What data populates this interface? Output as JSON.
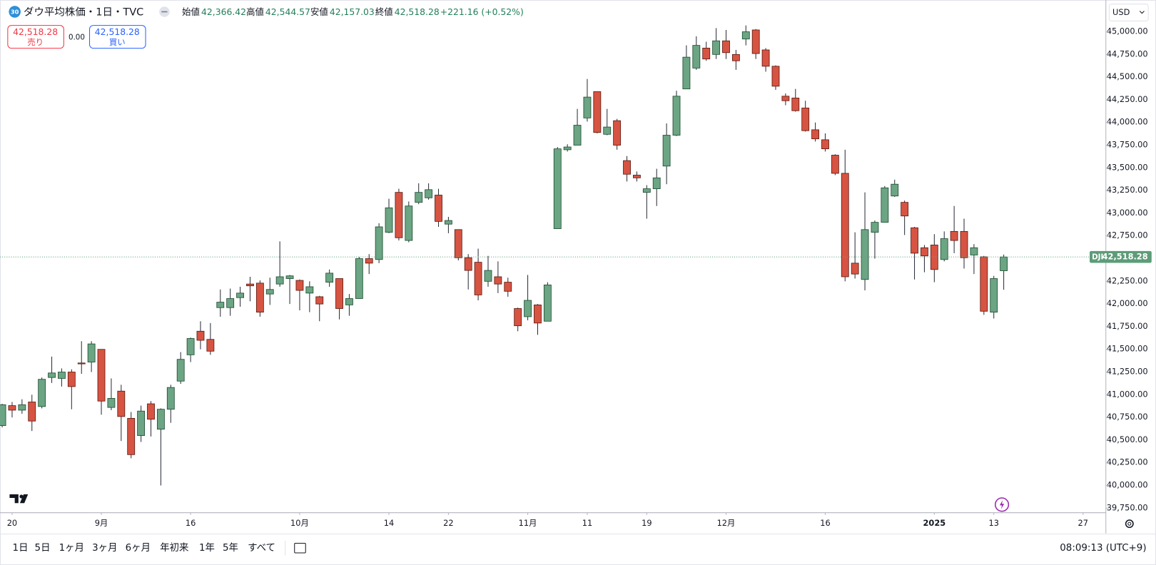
{
  "header": {
    "badge": "30",
    "symbol": "ダウ平均株価・1日・TVC",
    "legend": [
      {
        "label": "始値",
        "value": "42,366.42"
      },
      {
        "label": "高値",
        "value": "42,544.57"
      },
      {
        "label": "安値",
        "value": "42,157.03"
      },
      {
        "label": "終値",
        "value": "42,518.28"
      }
    ],
    "change": "+221.16 (+0.52%)"
  },
  "trade": {
    "sell_price": "42,518.28",
    "sell_label": "売り",
    "spread": "0.00",
    "buy_price": "42,518.28",
    "buy_label": "買い"
  },
  "currency": "USD",
  "chart_data": {
    "type": "candlestick",
    "grid": false,
    "series": [
      {
        "name": "DJI",
        "up_color": "#6ba583",
        "down_color": "#d75442",
        "last_value_label": "42,518.28",
        "open": [
          40660,
          40880,
          40830,
          40920,
          40870,
          41190,
          41180,
          41250,
          41350,
          41360,
          41500,
          40860,
          41040,
          40740,
          40550,
          40900,
          40620,
          40840,
          41150,
          41440,
          41700,
          41610,
          41960,
          41960,
          42070,
          42220,
          42230,
          42110,
          42220,
          42280,
          42260,
          42120,
          42080,
          42240,
          42280,
          41990,
          42060,
          42500,
          42490,
          42790,
          43230,
          42700,
          43120,
          43170,
          43200,
          42880,
          42820,
          42510,
          42460,
          42250,
          42300,
          42240,
          41950,
          41860,
          41990,
          41810,
          42830,
          43700,
          43750,
          44050,
          44340,
          43870,
          44020,
          43580,
          43420,
          43230,
          43270,
          43520,
          43860,
          44370,
          44600,
          44820,
          44750,
          44900,
          44750,
          44920,
          45020,
          44800,
          44620,
          44290,
          44270,
          44160,
          43920,
          43810,
          43640,
          43440,
          42450,
          42270,
          42790,
          42900,
          43190,
          43120,
          42840,
          42620,
          42650,
          42490,
          42800,
          42800,
          42540,
          42520,
          41910,
          42366.42
        ],
        "high": [
          40900,
          40920,
          40950,
          41000,
          41190,
          41420,
          41290,
          41280,
          41590,
          41590,
          41500,
          41180,
          41110,
          40810,
          40880,
          40930,
          40850,
          41110,
          41470,
          41630,
          41810,
          41790,
          42160,
          42170,
          42190,
          42300,
          42260,
          42290,
          42690,
          42320,
          42270,
          42250,
          42090,
          42380,
          42280,
          42110,
          42520,
          42550,
          42890,
          43160,
          43270,
          43130,
          43330,
          43330,
          43270,
          42960,
          42820,
          42550,
          42610,
          42530,
          42470,
          42290,
          41960,
          42320,
          42000,
          42240,
          43730,
          43760,
          44150,
          44480,
          44340,
          44150,
          44040,
          43630,
          43460,
          43310,
          43490,
          43990,
          44350,
          44850,
          44950,
          44890,
          45040,
          45020,
          44800,
          45070,
          45030,
          44820,
          44630,
          44320,
          44370,
          44240,
          44000,
          43880,
          43650,
          43700,
          42790,
          43230,
          42920,
          43300,
          43370,
          43140,
          42850,
          42650,
          42770,
          42800,
          43080,
          42940,
          42660,
          42530,
          42310,
          42544.57
        ],
        "low": [
          40640,
          40750,
          40790,
          40600,
          40850,
          41130,
          41090,
          40840,
          41230,
          41250,
          40780,
          40830,
          40490,
          40300,
          40480,
          40540,
          40000,
          40690,
          41120,
          41360,
          41500,
          41440,
          41860,
          41870,
          41970,
          42030,
          41860,
          41990,
          42190,
          42000,
          41930,
          41910,
          41810,
          42190,
          41830,
          41870,
          42060,
          42330,
          42450,
          42780,
          42700,
          42680,
          43100,
          43150,
          42850,
          42780,
          42480,
          42160,
          42040,
          42190,
          42120,
          42080,
          41700,
          41820,
          41660,
          41810,
          42830,
          43680,
          43750,
          44010,
          43880,
          43860,
          43700,
          43350,
          43350,
          42940,
          43080,
          43320,
          43850,
          44370,
          44580,
          44680,
          44700,
          44700,
          44580,
          44850,
          44700,
          44560,
          44360,
          44190,
          44120,
          43900,
          43790,
          43680,
          43420,
          42250,
          42280,
          42150,
          42500,
          42900,
          43180,
          42760,
          42270,
          42350,
          42240,
          42470,
          42560,
          42390,
          42330,
          41880,
          41840,
          42157.03
        ],
        "close": [
          40890,
          40830,
          40890,
          40710,
          41170,
          41240,
          41250,
          41090,
          41340,
          41560,
          40930,
          40960,
          40760,
          40340,
          40820,
          40730,
          40840,
          41080,
          41390,
          41620,
          41600,
          41480,
          42020,
          42060,
          42120,
          42200,
          41910,
          42160,
          42300,
          42310,
          42150,
          42190,
          42000,
          42340,
          41950,
          42060,
          42500,
          42450,
          42850,
          43060,
          42730,
          43080,
          43230,
          43260,
          42910,
          42920,
          42510,
          42370,
          42100,
          42370,
          42220,
          42140,
          41760,
          42040,
          41790,
          42210,
          43710,
          43730,
          43970,
          44280,
          43890,
          43950,
          43750,
          43430,
          43390,
          43270,
          43390,
          43860,
          44290,
          44720,
          44850,
          44700,
          44900,
          44770,
          44680,
          45000,
          44760,
          44620,
          44400,
          44240,
          44130,
          43910,
          43820,
          43710,
          43440,
          42300,
          42330,
          42820,
          42900,
          43280,
          43320,
          42970,
          42560,
          42530,
          42380,
          42720,
          42700,
          42510,
          42620,
          41920,
          42280,
          42518.28
        ]
      }
    ],
    "ylim": [
      39700,
      45350
    ],
    "yticks": [
      {
        "value": 39750,
        "label": "39,750.00"
      },
      {
        "value": 40000,
        "label": "40,000.00"
      },
      {
        "value": 40250,
        "label": "40,250.00"
      },
      {
        "value": 40500,
        "label": "40,500.00"
      },
      {
        "value": 40750,
        "label": "40,750.00"
      },
      {
        "value": 41000,
        "label": "41,000.00"
      },
      {
        "value": 41250,
        "label": "41,250.00"
      },
      {
        "value": 41500,
        "label": "41,500.00"
      },
      {
        "value": 41750,
        "label": "41,750.00"
      },
      {
        "value": 42000,
        "label": "42,000.00"
      },
      {
        "value": 42250,
        "label": "42,250.00"
      },
      {
        "value": 42500,
        "label": "42,500.00"
      },
      {
        "value": 42750,
        "label": "42,750.00"
      },
      {
        "value": 43000,
        "label": "43,000.00"
      },
      {
        "value": 43250,
        "label": "43,250.00"
      },
      {
        "value": 43500,
        "label": "43,500.00"
      },
      {
        "value": 43750,
        "label": "43,750.00"
      },
      {
        "value": 44000,
        "label": "44,000.00"
      },
      {
        "value": 44250,
        "label": "44,250.00"
      },
      {
        "value": 44500,
        "label": "44,500.00"
      },
      {
        "value": 44750,
        "label": "44,750.00"
      },
      {
        "value": 45000,
        "label": "45,000.00"
      }
    ],
    "xlim": [
      -0.22,
      111.3
    ],
    "xticks": [
      {
        "value": 1,
        "label": "20"
      },
      {
        "value": 10,
        "label": "9月"
      },
      {
        "value": 19,
        "label": "16"
      },
      {
        "value": 30,
        "label": "10月"
      },
      {
        "value": 39,
        "label": "14"
      },
      {
        "value": 45,
        "label": "22"
      },
      {
        "value": 53,
        "label": "11月"
      },
      {
        "value": 59,
        "label": "11"
      },
      {
        "value": 65,
        "label": "19"
      },
      {
        "value": 73,
        "label": "12月"
      },
      {
        "value": 83,
        "label": "16"
      },
      {
        "value": 94,
        "label": "2025"
      },
      {
        "value": 100,
        "label": "13"
      },
      {
        "value": 109,
        "label": "27"
      }
    ]
  },
  "toolbar": {
    "ranges": [
      "1日",
      "5日",
      "1ヶ月",
      "3ヶ月",
      "6ヶ月",
      "年初来",
      "1年",
      "5年",
      "すべて"
    ],
    "clock": "08:09:13 (UTC+9)"
  }
}
